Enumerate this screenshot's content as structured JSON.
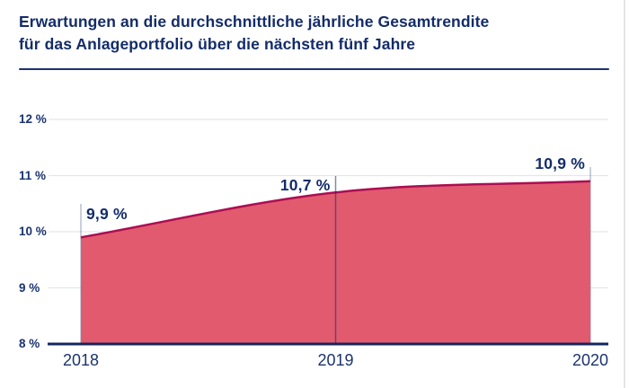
{
  "header": {
    "title_line1": "Erwartungen an die durchschnittliche jährliche Gesamtrendite",
    "title_line2": "für das Anlageportfolio über die nächsten fünf Jahre"
  },
  "chart_data": {
    "type": "area",
    "title": "Erwartungen an die durchschnittliche jährliche Gesamtrendite für das Anlageportfolio über die nächsten fünf Jahre",
    "categories": [
      "2018",
      "2019",
      "2020"
    ],
    "values": [
      9.9,
      10.7,
      10.9
    ],
    "point_labels": [
      "9,9 %",
      "10,7 %",
      "10,9 %"
    ],
    "ylim": [
      8,
      12
    ],
    "yticks": [
      12,
      11,
      10,
      9,
      8
    ],
    "ytick_labels": [
      "12 %",
      "11 %",
      "10 %",
      "9 %",
      "8 %"
    ],
    "grid": true,
    "legend": false,
    "colors": {
      "fill": "#e25a6e",
      "stroke": "#ac0e52",
      "text": "#132c6a",
      "axis": "#14265e",
      "gridline": "#e4e6ec",
      "marker_line": "rgba(21,43,100,0.30)",
      "marker_line_mid": "rgba(21,43,100,0.55)"
    }
  }
}
